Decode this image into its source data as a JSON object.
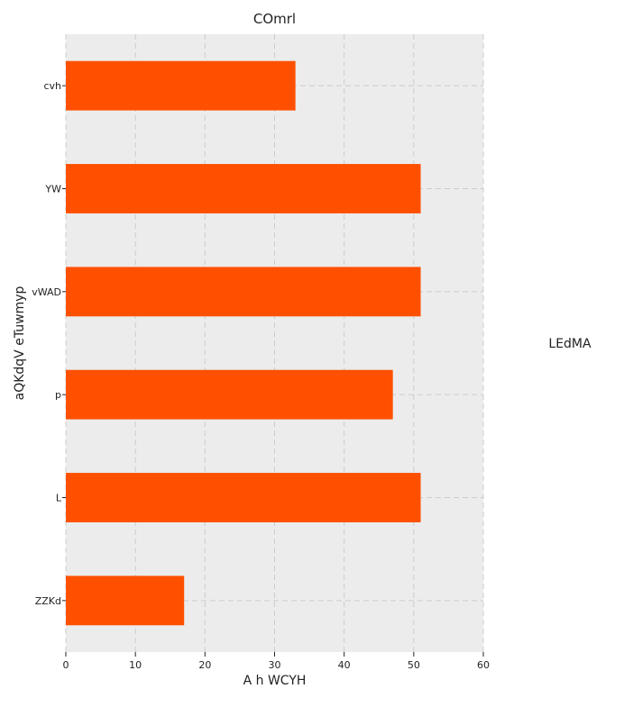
{
  "chart_data": {
    "type": "bar",
    "orientation": "horizontal",
    "title": "COmrl",
    "xlabel": "A h WCYH",
    "ylabel": "aQKdqV eTuwmyp",
    "categories": [
      "cvh",
      "YW",
      "vWAD",
      "p",
      "L",
      "ZZKd"
    ],
    "series": [
      {
        "name": "LEdMA",
        "values": [
          33,
          51,
          51,
          47,
          51,
          17
        ]
      }
    ],
    "xlim": [
      0,
      60
    ],
    "xticks": [
      0,
      10,
      20,
      30,
      40,
      50,
      60
    ],
    "grid": true,
    "legend_position": "right",
    "colors": {
      "bar": "#ff5000",
      "plot_background": "#ececec",
      "grid": "#cccccc"
    }
  }
}
